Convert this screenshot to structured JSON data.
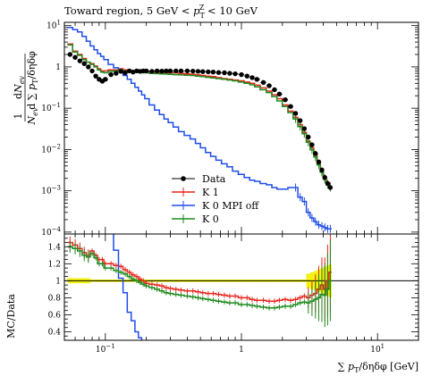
{
  "chart_data": {
    "type": "line",
    "title_prefix": "Toward region, 5 GeV < ",
    "title_var": "p",
    "title_sub": "T",
    "title_sup": "Z",
    "title_suffix": " < 10 GeV",
    "xlabel": "∑ pT/δηδφ [GeV]",
    "ylabel_main": "1/N_ev dN_ev/d∑pT/δηδφ",
    "ylabel_ratio": "MC/Data",
    "x_scale": "log",
    "xlim": [
      0.05,
      20
    ],
    "ylim_main": [
      9e-05,
      12
    ],
    "ylim_ratio": [
      0.3,
      1.55
    ],
    "x_ticks": [
      {
        "value": 0.1,
        "label": "10",
        "exp": "−1"
      },
      {
        "value": 1,
        "label": "1",
        "exp": ""
      },
      {
        "value": 10,
        "label": "10",
        "exp": "1"
      }
    ],
    "y_ticks_main": [
      {
        "value": 10,
        "label": "10",
        "exp": "1"
      },
      {
        "value": 1,
        "label": "1",
        "exp": ""
      },
      {
        "value": 0.1,
        "label": "10",
        "exp": "−1"
      },
      {
        "value": 0.01,
        "label": "10",
        "exp": "−2"
      },
      {
        "value": 0.001,
        "label": "10",
        "exp": "−3"
      },
      {
        "value": 0.0001,
        "label": "10",
        "exp": "−4"
      }
    ],
    "y_ticks_ratio": [
      {
        "value": 1.4,
        "label": "1.4"
      },
      {
        "value": 1.2,
        "label": "1.2"
      },
      {
        "value": 1.0,
        "label": "1"
      },
      {
        "value": 0.8,
        "label": "0.8"
      },
      {
        "value": 0.6,
        "label": "0.6"
      },
      {
        "value": 0.4,
        "label": "0.4"
      }
    ],
    "x": [
      0.055,
      0.06,
      0.065,
      0.07,
      0.075,
      0.08,
      0.085,
      0.09,
      0.095,
      0.1,
      0.11,
      0.12,
      0.13,
      0.14,
      0.15,
      0.16,
      0.17,
      0.18,
      0.19,
      0.2,
      0.22,
      0.24,
      0.26,
      0.28,
      0.3,
      0.33,
      0.36,
      0.4,
      0.44,
      0.48,
      0.52,
      0.57,
      0.62,
      0.68,
      0.75,
      0.82,
      0.9,
      1.0,
      1.1,
      1.2,
      1.3,
      1.45,
      1.6,
      1.75,
      1.9,
      2.1,
      2.3,
      2.5,
      2.7,
      2.9,
      3.1,
      3.3,
      3.5,
      3.7,
      3.9,
      4.1,
      4.3,
      4.5
    ],
    "series": [
      {
        "name": "Data",
        "color": "#000000",
        "style": "points",
        "values": [
          2.0,
          1.7,
          1.4,
          1.2,
          1.0,
          0.8,
          0.6,
          0.5,
          0.45,
          0.5,
          0.65,
          0.7,
          0.78,
          0.72,
          0.8,
          0.75,
          0.8,
          0.78,
          0.8,
          0.8,
          0.78,
          0.8,
          0.79,
          0.8,
          0.8,
          0.8,
          0.8,
          0.8,
          0.79,
          0.78,
          0.77,
          0.76,
          0.75,
          0.73,
          0.72,
          0.7,
          0.68,
          0.65,
          0.6,
          0.55,
          0.5,
          0.42,
          0.35,
          0.28,
          0.22,
          0.16,
          0.11,
          0.075,
          0.05,
          0.032,
          0.02,
          0.013,
          0.008,
          0.005,
          0.0032,
          0.0021,
          0.0015,
          0.0012
        ]
      },
      {
        "name": "K 1",
        "color": "#e8251b",
        "style": "steps",
        "values": [
          3.6,
          2.4,
          2.0,
          1.6,
          1.3,
          1.2,
          1.05,
          0.9,
          0.8,
          0.8,
          0.85,
          0.85,
          0.9,
          0.85,
          0.85,
          0.8,
          0.8,
          0.8,
          0.78,
          0.78,
          0.75,
          0.75,
          0.74,
          0.73,
          0.72,
          0.72,
          0.7,
          0.68,
          0.66,
          0.64,
          0.62,
          0.6,
          0.58,
          0.55,
          0.52,
          0.5,
          0.48,
          0.46,
          0.43,
          0.4,
          0.36,
          0.31,
          0.26,
          0.21,
          0.17,
          0.12,
          0.085,
          0.06,
          0.04,
          0.026,
          0.016,
          0.011,
          0.0075,
          0.0045,
          0.003,
          0.002,
          0.0015,
          0.0013
        ]
      },
      {
        "name": "K 0 MPI off",
        "color": "#1f4de8",
        "style": "steps",
        "values": [
          9.0,
          8.0,
          7.0,
          5.5,
          4.2,
          3.2,
          2.6,
          2.1,
          1.8,
          1.5,
          1.15,
          0.95,
          0.8,
          0.62,
          0.5,
          0.4,
          0.32,
          0.26,
          0.21,
          0.17,
          0.12,
          0.09,
          0.07,
          0.055,
          0.045,
          0.035,
          0.027,
          0.022,
          0.018,
          0.014,
          0.011,
          0.0085,
          0.0068,
          0.0055,
          0.0045,
          0.0038,
          0.003,
          0.0025,
          0.0021,
          0.0018,
          0.0017,
          0.0015,
          0.0014,
          0.0012,
          0.0011,
          0.0011,
          0.0012,
          0.0012,
          0.0007,
          0.00055,
          0.0003,
          0.00022,
          0.00018,
          0.00015,
          0.00014,
          0.00013,
          0.00012,
          0.00012
        ]
      },
      {
        "name": "K 0",
        "color": "#1e8a1e",
        "style": "steps",
        "values": [
          3.4,
          2.3,
          1.9,
          1.5,
          1.3,
          1.15,
          1.0,
          0.85,
          0.75,
          0.72,
          0.78,
          0.8,
          0.85,
          0.8,
          0.78,
          0.76,
          0.74,
          0.74,
          0.72,
          0.72,
          0.7,
          0.69,
          0.68,
          0.67,
          0.66,
          0.65,
          0.64,
          0.63,
          0.62,
          0.6,
          0.58,
          0.56,
          0.54,
          0.52,
          0.5,
          0.48,
          0.46,
          0.43,
          0.4,
          0.37,
          0.33,
          0.28,
          0.24,
          0.19,
          0.15,
          0.11,
          0.078,
          0.055,
          0.036,
          0.024,
          0.015,
          0.0098,
          0.0066,
          0.0042,
          0.0028,
          0.0019,
          0.0014,
          0.0012
        ]
      }
    ],
    "ratio_series": [
      {
        "name": "K 1",
        "color": "#e8251b",
        "values": [
          1.45,
          1.42,
          1.38,
          1.33,
          1.3,
          1.35,
          1.3,
          1.25,
          1.25,
          1.2,
          1.2,
          1.18,
          1.17,
          1.13,
          1.1,
          1.07,
          1.05,
          1.02,
          1.0,
          0.97,
          0.96,
          0.95,
          0.94,
          0.92,
          0.91,
          0.9,
          0.89,
          0.88,
          0.88,
          0.87,
          0.86,
          0.85,
          0.85,
          0.84,
          0.83,
          0.82,
          0.82,
          0.8,
          0.8,
          0.78,
          0.77,
          0.77,
          0.76,
          0.76,
          0.77,
          0.78,
          0.77,
          0.78,
          0.8,
          0.82,
          0.8,
          0.83,
          0.85,
          0.9,
          0.95,
          0.9,
          1.0,
          1.1
        ]
      },
      {
        "name": "K 0 MPI off",
        "color": "#1f4de8",
        "values": [
          4.5,
          4.6,
          5.0,
          4.6,
          4.2,
          4.0,
          4.3,
          4.2,
          4.0,
          3.0,
          1.77,
          1.36,
          1.03,
          0.86,
          0.63,
          0.53,
          0.4,
          0.33,
          0.26,
          0.21,
          0.15,
          0.11,
          0.09,
          0.07,
          0.055,
          0.044,
          0.034,
          0.028,
          0.023,
          0.018,
          0.014,
          0.011,
          0.009,
          0.0075,
          0.006,
          0.005,
          0.0045,
          0.004,
          0.0035,
          0.0033,
          0.0034,
          0.0036,
          0.004,
          0.0045,
          0.005,
          0.007,
          0.011,
          0.016,
          0.014,
          0.017,
          0.015,
          0.017,
          0.022,
          0.03,
          0.044,
          0.062,
          0.08,
          0.1
        ]
      },
      {
        "name": "K 0",
        "color": "#1e8a1e",
        "values": [
          1.4,
          1.38,
          1.35,
          1.3,
          1.28,
          1.32,
          1.27,
          1.2,
          1.2,
          1.15,
          1.15,
          1.12,
          1.1,
          1.08,
          1.05,
          1.02,
          1.0,
          0.98,
          0.96,
          0.94,
          0.92,
          0.9,
          0.88,
          0.86,
          0.85,
          0.84,
          0.83,
          0.82,
          0.81,
          0.8,
          0.79,
          0.78,
          0.77,
          0.76,
          0.75,
          0.74,
          0.74,
          0.72,
          0.72,
          0.71,
          0.7,
          0.69,
          0.68,
          0.68,
          0.69,
          0.7,
          0.7,
          0.72,
          0.74,
          0.75,
          0.74,
          0.76,
          0.78,
          0.8,
          0.84,
          0.83,
          0.9,
          1.0
        ]
      }
    ],
    "legend": [
      {
        "label": "Data",
        "color": "#000000",
        "style": "points"
      },
      {
        "label": "K 1",
        "color": "#e8251b",
        "style": "line"
      },
      {
        "label": "K 0 MPI off",
        "color": "#1f4de8",
        "style": "line"
      },
      {
        "label": "K 0",
        "color": "#1e8a1e",
        "style": "line"
      }
    ],
    "legend_position": "center-right",
    "band_color": "#f2f20a",
    "grid": false
  }
}
